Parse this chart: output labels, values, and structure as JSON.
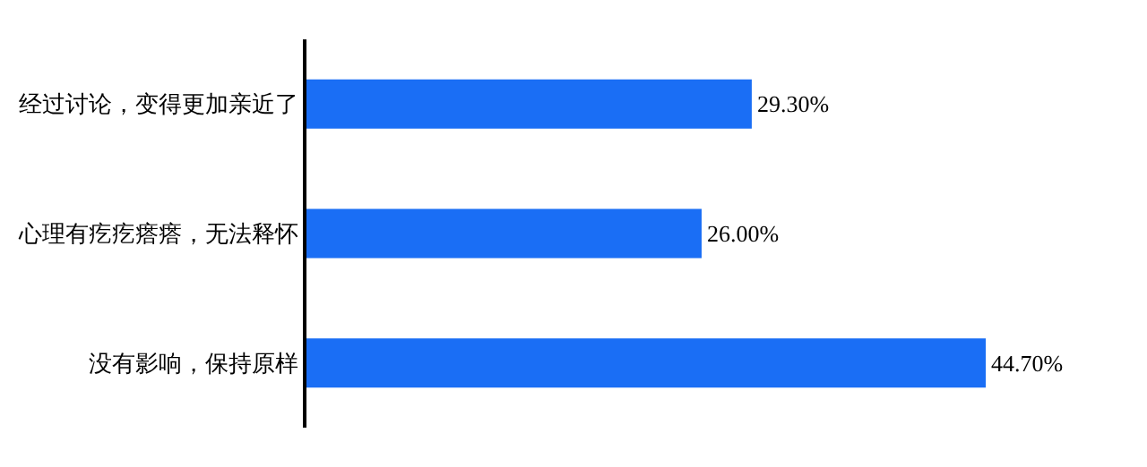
{
  "chart_data": {
    "type": "bar",
    "orientation": "horizontal",
    "categories": [
      "经过讨论，变得更加亲近了",
      "心理有疙疙瘩瘩，无法释怀",
      "没有影响，保持原样"
    ],
    "values": [
      29.3,
      26.0,
      44.7
    ],
    "color": "#1a6ef5",
    "value_labels": [
      "29.30%",
      "26.00%",
      "44.70%"
    ]
  }
}
